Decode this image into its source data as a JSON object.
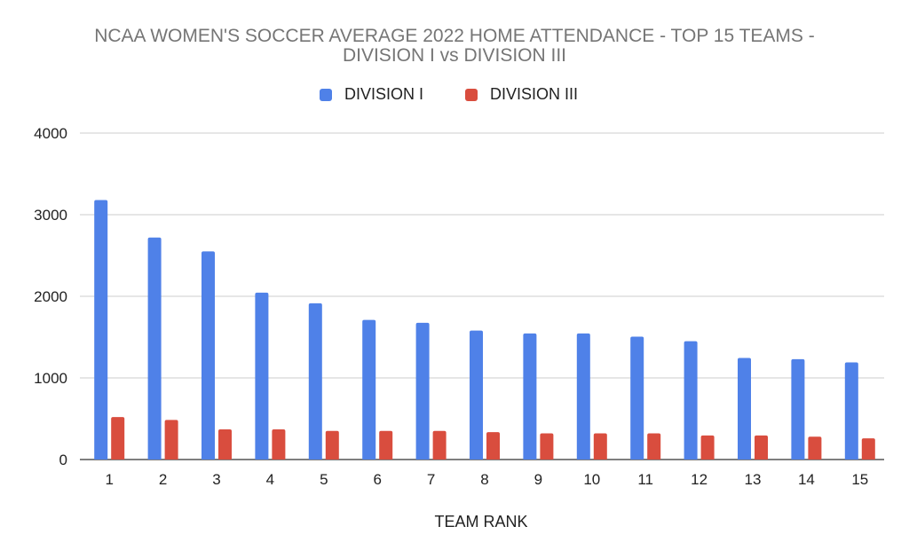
{
  "chart_data": {
    "type": "bar",
    "title_line1": "NCAA WOMEN'S SOCCER AVERAGE 2022 HOME ATTENDANCE - TOP 15 TEAMS -",
    "title_line2": "DIVISION I vs DIVISION III",
    "xlabel": "TEAM RANK",
    "ylabel": "",
    "ylim": [
      0,
      4000
    ],
    "yticks": [
      0,
      1000,
      2000,
      3000,
      4000
    ],
    "categories": [
      "1",
      "2",
      "3",
      "4",
      "5",
      "6",
      "7",
      "8",
      "9",
      "10",
      "11",
      "12",
      "13",
      "14",
      "15"
    ],
    "legend_position": "top",
    "grid": true,
    "series": [
      {
        "name": "DIVISION I",
        "color": "#4f81e8",
        "values": [
          3180,
          2720,
          2550,
          2045,
          1915,
          1710,
          1675,
          1580,
          1545,
          1545,
          1505,
          1450,
          1245,
          1230,
          1190
        ]
      },
      {
        "name": "DIVISION III",
        "color": "#d94d3e",
        "values": [
          520,
          485,
          370,
          370,
          350,
          350,
          350,
          335,
          320,
          320,
          320,
          295,
          295,
          280,
          260
        ]
      }
    ]
  }
}
